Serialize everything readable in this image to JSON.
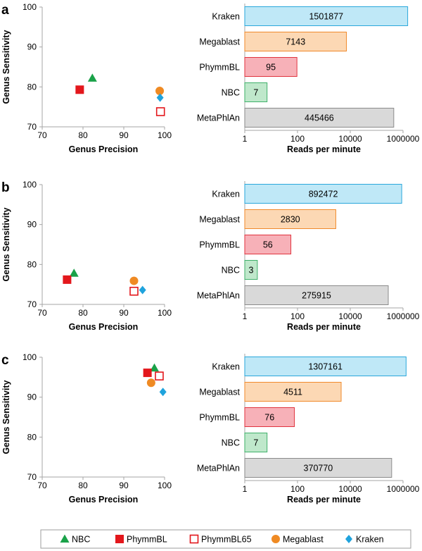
{
  "colors": {
    "NBC": "#1aa249",
    "PhymmBL": "#e3171c",
    "PhymmBL65": "#e3171c",
    "Megablast": "#ef8a23",
    "Kraken": "#1fa3dd",
    "bar_fill": {
      "Kraken": "#bfe8f7",
      "Megablast": "#fcd8b4",
      "PhymmBL": "#f7b1b8",
      "NBC": "#bfe8cb",
      "MetaPhlAn": "#d9d9d9"
    },
    "bar_stroke": {
      "Kraken": "#2aa7db",
      "Megablast": "#f08a2c",
      "PhymmBL": "#e0343f",
      "NBC": "#3fb06a",
      "MetaPhlAn": "#8a8a8a"
    }
  },
  "legend": {
    "items": [
      {
        "name": "NBC",
        "marker": "triangle"
      },
      {
        "name": "PhymmBL",
        "marker": "square-filled"
      },
      {
        "name": "PhymmBL65",
        "marker": "square-open"
      },
      {
        "name": "Megablast",
        "marker": "circle"
      },
      {
        "name": "Kraken",
        "marker": "diamond"
      }
    ]
  },
  "chart_data": [
    {
      "panel": "a",
      "type": "scatter",
      "xlabel": "Genus Precision",
      "ylabel": "Genus Sensitivity",
      "xlim": [
        70,
        100
      ],
      "ylim": [
        70,
        100
      ],
      "xticks": [
        70,
        80,
        90,
        100
      ],
      "yticks": [
        70,
        80,
        90,
        100
      ],
      "points": [
        {
          "name": "NBC",
          "x": 82.3,
          "y": 82.2
        },
        {
          "name": "PhymmBL",
          "x": 79.2,
          "y": 79.3
        },
        {
          "name": "PhymmBL65",
          "x": 99.0,
          "y": 73.8
        },
        {
          "name": "Megablast",
          "x": 98.8,
          "y": 79.0
        },
        {
          "name": "Kraken",
          "x": 98.9,
          "y": 77.3
        }
      ]
    },
    {
      "panel": "a",
      "type": "bar",
      "orientation": "horizontal",
      "scale": "log",
      "xlabel": "Reads per minute",
      "xticks": [
        1,
        100,
        10000,
        1000000
      ],
      "xtick_labels": [
        "1",
        "100",
        "10000",
        "1000000"
      ],
      "categories": [
        "Kraken",
        "Megablast",
        "PhymmBL",
        "NBC",
        "MetaPhlAn"
      ],
      "values": [
        1501877,
        7143,
        95,
        7,
        445466
      ],
      "value_labels": [
        "1501877",
        "7143",
        "95",
        "7",
        "445466"
      ]
    },
    {
      "panel": "b",
      "type": "scatter",
      "xlabel": "Genus Precision",
      "ylabel": "Genus Sensitivity",
      "xlim": [
        70,
        100
      ],
      "ylim": [
        70,
        100
      ],
      "xticks": [
        70,
        80,
        90,
        100
      ],
      "yticks": [
        70,
        80,
        90,
        100
      ],
      "points": [
        {
          "name": "NBC",
          "x": 77.8,
          "y": 77.8
        },
        {
          "name": "PhymmBL",
          "x": 76.1,
          "y": 76.2
        },
        {
          "name": "PhymmBL65",
          "x": 92.5,
          "y": 73.3
        },
        {
          "name": "Megablast",
          "x": 92.5,
          "y": 75.9
        },
        {
          "name": "Kraken",
          "x": 94.6,
          "y": 73.6
        }
      ]
    },
    {
      "panel": "b",
      "type": "bar",
      "orientation": "horizontal",
      "scale": "log",
      "xlabel": "Reads per minute",
      "xticks": [
        1,
        100,
        10000,
        1000000
      ],
      "xtick_labels": [
        "1",
        "100",
        "10000",
        "1000000"
      ],
      "categories": [
        "Kraken",
        "Megablast",
        "PhymmBL",
        "NBC",
        "MetaPhlAn"
      ],
      "values": [
        892472,
        2830,
        56,
        3,
        275915
      ],
      "value_labels": [
        "892472",
        "2830",
        "56",
        "3",
        "275915"
      ]
    },
    {
      "panel": "c",
      "type": "scatter",
      "xlabel": "Genus Precision",
      "ylabel": "Genus Sensitivity",
      "xlim": [
        70,
        100
      ],
      "ylim": [
        70,
        100
      ],
      "xticks": [
        70,
        80,
        90,
        100
      ],
      "yticks": [
        70,
        80,
        90,
        100
      ],
      "points": [
        {
          "name": "NBC",
          "x": 97.5,
          "y": 97.3
        },
        {
          "name": "PhymmBL",
          "x": 95.8,
          "y": 96.1
        },
        {
          "name": "PhymmBL65",
          "x": 98.7,
          "y": 95.3
        },
        {
          "name": "Megablast",
          "x": 96.7,
          "y": 93.6
        },
        {
          "name": "Kraken",
          "x": 99.6,
          "y": 91.3
        }
      ]
    },
    {
      "panel": "c",
      "type": "bar",
      "orientation": "horizontal",
      "scale": "log",
      "xlabel": "Reads per minute",
      "xticks": [
        1,
        100,
        10000,
        1000000
      ],
      "xtick_labels": [
        "1",
        "100",
        "10000",
        "1000000"
      ],
      "categories": [
        "Kraken",
        "Megablast",
        "PhymmBL",
        "NBC",
        "MetaPhlAn"
      ],
      "values": [
        1307161,
        4511,
        76,
        7,
        370770
      ],
      "value_labels": [
        "1307161",
        "4511",
        "76",
        "7",
        "370770"
      ]
    }
  ]
}
